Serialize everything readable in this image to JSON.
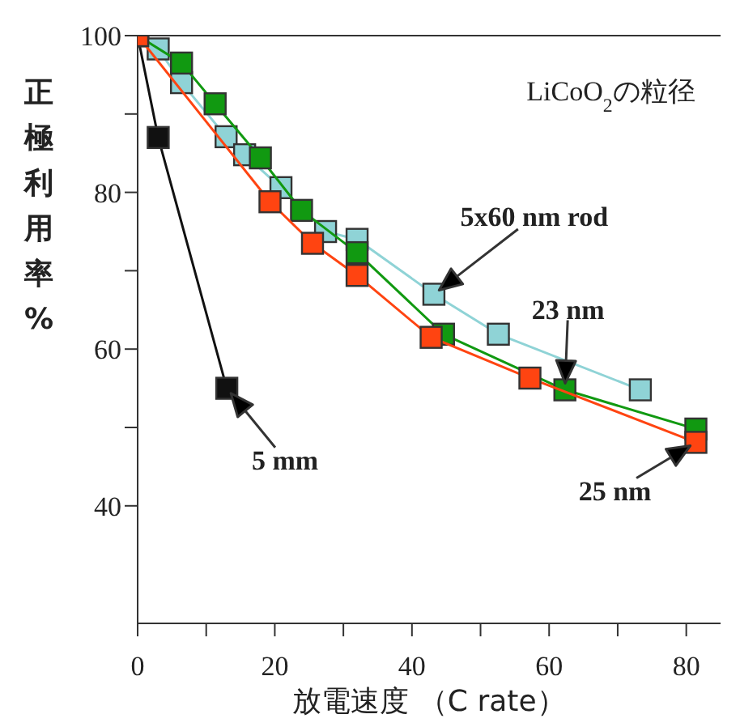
{
  "chart_data": {
    "type": "line",
    "legend_title": "LiCoO$_{2}$の粒径",
    "xlabel": "放電速度 （C rate）",
    "ylabel": "正極利用率 %",
    "xlim": [
      0,
      85
    ],
    "ylim": [
      25,
      100
    ],
    "xticks": [
      0,
      {
        "value": 10,
        "label": null
      },
      20,
      {
        "value": 30,
        "label": null
      },
      40,
      {
        "value": 50,
        "label": null
      },
      60,
      {
        "value": 70,
        "label": null
      },
      80
    ],
    "yticks": [
      40,
      {
        "value": 50,
        "label": null
      },
      60,
      {
        "value": 70,
        "label": null
      },
      80,
      {
        "value": 90,
        "label": null
      },
      100
    ],
    "marker": "square",
    "line_style": "solid",
    "annotations": [
      {
        "text": "5 mm",
        "x": 13,
        "y": 55
      },
      {
        "text": "5x60 nm rod",
        "x": 43.2,
        "y": 67
      },
      {
        "text": "23 nm",
        "x": 62.3,
        "y": 54.8
      },
      {
        "text": "25 nm",
        "x": 81.4,
        "y": 48.1
      }
    ],
    "series": [
      {
        "color": "#111111",
        "x": [
          0,
          3,
          13
        ],
        "values": [
          100,
          87,
          55
        ]
      },
      {
        "color": "#8fd3d6",
        "x": [
          0,
          3,
          6.4,
          12.9,
          15.6,
          20.9,
          27.4,
          32,
          43.2,
          52.6,
          73.3
        ],
        "values": [
          100,
          98.3,
          94,
          87.1,
          84.8,
          80.6,
          75,
          74,
          67,
          61.9,
          54.8
        ]
      },
      {
        "color": "#119911",
        "x": [
          0,
          6.4,
          11.3,
          17.9,
          23.9,
          32,
          44.6,
          62.3,
          81.4
        ],
        "values": [
          100,
          96.5,
          91.3,
          84.4,
          77.7,
          72.3,
          61.9,
          54.8,
          49.8
        ]
      },
      {
        "color": "#ff4411",
        "x": [
          0,
          19.3,
          25.5,
          32,
          42.8,
          57.2,
          81.4
        ],
        "values": [
          100,
          78.8,
          73.5,
          69.4,
          61.5,
          56.3,
          48.1
        ]
      }
    ]
  }
}
